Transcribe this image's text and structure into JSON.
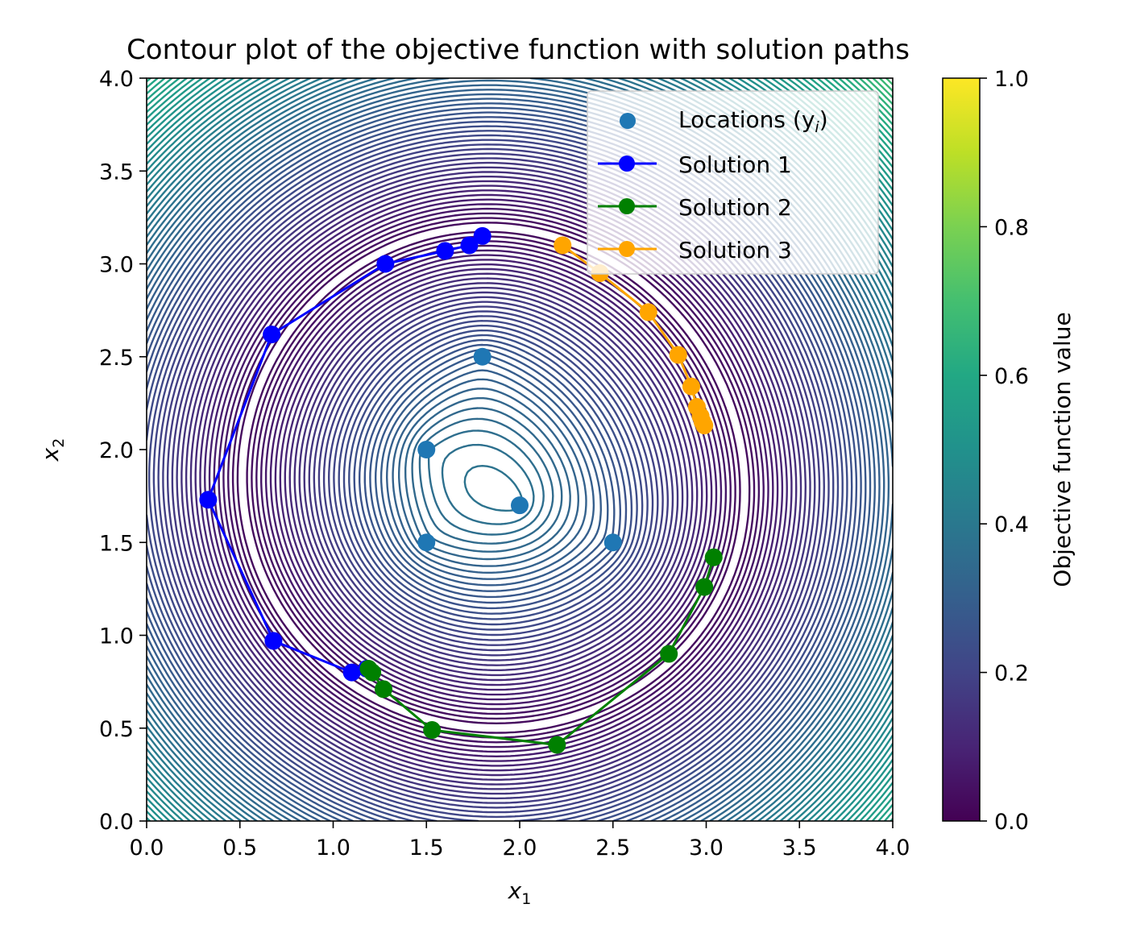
{
  "chart_data": {
    "type": "contour",
    "title": "Contour plot of the objective function with solution paths",
    "xlabel": "x",
    "xlabel_sub": "1",
    "ylabel": "x",
    "ylabel_sub": "2",
    "xlim": [
      0,
      4
    ],
    "ylim": [
      0,
      4
    ],
    "xticks": [
      "0.0",
      "0.5",
      "1.0",
      "1.5",
      "2.0",
      "2.5",
      "3.0",
      "3.5",
      "4.0"
    ],
    "yticks": [
      "0.0",
      "0.5",
      "1.0",
      "1.5",
      "2.0",
      "2.5",
      "3.0",
      "3.5",
      "4.0"
    ],
    "colorbar": {
      "label": "Objective function value",
      "range": [
        0,
        1
      ],
      "ticks": [
        "0.0",
        "0.2",
        "0.4",
        "0.6",
        "0.8",
        "1.0"
      ],
      "colormap": "viridis"
    },
    "legend": {
      "position": "top-right",
      "locations_label": "Locations (y",
      "locations_label_sub": "i",
      "locations_label_end": ")"
    },
    "locations": {
      "color": "#1f77b4",
      "points": [
        [
          1.8,
          2.5
        ],
        [
          1.5,
          2.0
        ],
        [
          2.0,
          1.7
        ],
        [
          1.5,
          1.5
        ],
        [
          2.5,
          1.5
        ]
      ]
    },
    "series": [
      {
        "name": "Solution 1",
        "color": "#0000ff",
        "points": [
          [
            1.8,
            3.15
          ],
          [
            1.73,
            3.1
          ],
          [
            1.6,
            3.07
          ],
          [
            1.28,
            3.0
          ],
          [
            0.67,
            2.62
          ],
          [
            0.33,
            1.73
          ],
          [
            0.68,
            0.97
          ],
          [
            1.1,
            0.8
          ],
          [
            1.18,
            0.82
          ]
        ]
      },
      {
        "name": "Solution 2",
        "color": "#008000",
        "points": [
          [
            3.04,
            1.42
          ],
          [
            2.99,
            1.26
          ],
          [
            2.8,
            0.9
          ],
          [
            2.2,
            0.41
          ],
          [
            1.53,
            0.49
          ],
          [
            1.27,
            0.71
          ],
          [
            1.21,
            0.8
          ],
          [
            1.19,
            0.82
          ]
        ]
      },
      {
        "name": "Solution 3",
        "color": "#ffa500",
        "points": [
          [
            2.23,
            3.1
          ],
          [
            2.43,
            2.95
          ],
          [
            2.69,
            2.74
          ],
          [
            2.85,
            2.51
          ],
          [
            2.92,
            2.34
          ],
          [
            2.95,
            2.23
          ],
          [
            2.97,
            2.18
          ],
          [
            2.98,
            2.15
          ],
          [
            2.99,
            2.13
          ]
        ]
      }
    ],
    "grid": false
  }
}
